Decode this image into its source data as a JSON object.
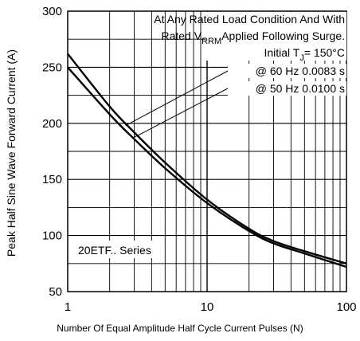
{
  "chart_data": {
    "type": "line",
    "xscale": "log",
    "xlim": [
      1,
      100
    ],
    "ylim": [
      50,
      300
    ],
    "xlabel": "Number Of Equal Amplitude Half Cycle Current Pulses (N)",
    "ylabel": "Peak Half Sine Wave Forward Current (A)",
    "x_ticks": [
      "1",
      "10",
      "100"
    ],
    "y_ticks": [
      "50",
      "100",
      "150",
      "200",
      "250",
      "300"
    ],
    "grid": true,
    "annotations": {
      "line1": "At Any Rated Load Condition And With",
      "line2_prefix": "Rated V",
      "line2_sub": "RRM",
      "line2_suffix": "Applied Following Surge.",
      "line3_prefix": "Initial T",
      "line3_sub": "J",
      "line3_suffix": "= 150°C",
      "series_label": "20ETF.. Series"
    },
    "series": [
      {
        "name": "@ 60 Hz 0.0083 s",
        "x": [
          1,
          2,
          3,
          5,
          10,
          20,
          30,
          50,
          100
        ],
        "values": [
          262,
          215,
          192,
          165,
          132,
          106,
          95,
          86,
          75
        ]
      },
      {
        "name": "@ 50 Hz 0.0100 s",
        "x": [
          1,
          2,
          3,
          5,
          10,
          20,
          30,
          50,
          100
        ],
        "values": [
          250,
          208,
          186,
          160,
          129,
          104,
          93,
          84,
          72
        ]
      }
    ]
  }
}
